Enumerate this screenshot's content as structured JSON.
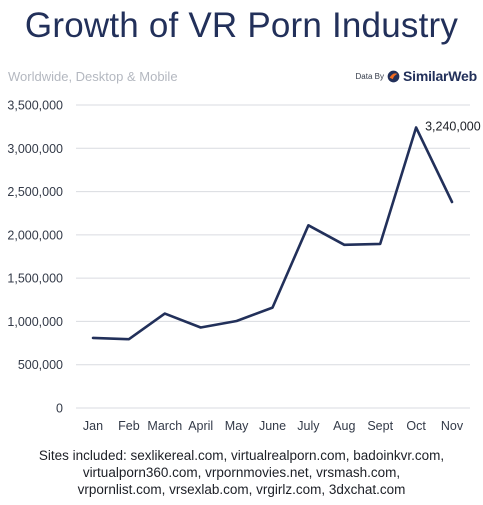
{
  "header": {
    "title": "Growth of VR Porn Industry",
    "subtitle": "Worldwide, Desktop & Mobile",
    "source_prefix": "Data By",
    "source_brand": "SimilarWeb",
    "source_icon": "similarweb-logo-icon"
  },
  "chart_data": {
    "type": "line",
    "title": "Growth of VR Porn Industry",
    "subtitle": "Worldwide, Desktop & Mobile",
    "xlabel": "",
    "ylabel": "",
    "categories": [
      "Jan",
      "Feb",
      "March",
      "April",
      "May",
      "June",
      "July",
      "Aug",
      "Sept",
      "Oct",
      "Nov"
    ],
    "series": [
      {
        "values": [
          810000,
          795000,
          1090000,
          930000,
          1005000,
          1160000,
          2110000,
          1885000,
          1895000,
          3240000,
          2380000
        ],
        "color": "#22305a"
      }
    ],
    "ylim": [
      0,
      3500000
    ],
    "yticks": [
      0,
      500000,
      1000000,
      1500000,
      2000000,
      2500000,
      3000000,
      3500000
    ],
    "ytick_labels": [
      "0",
      "500,000",
      "1,000,000",
      "1,500,000",
      "2,000,000",
      "2,500,000",
      "3,000,000",
      "3,500,000"
    ],
    "annotations": [
      {
        "category": "Oct",
        "value": 3240000,
        "label": "3,240,000"
      }
    ],
    "grid": true,
    "legend": "none"
  },
  "footer": {
    "lines": [
      "Sites included: sexlikereal.com, virtualrealporn.com, badoinkvr.com,",
      "virtualporn360.com, vrpornmovies.net, vrsmash.com,",
      "vrpornlist.com, vrsexlab.com, vrgirlz.com, 3dxchat.com"
    ]
  },
  "colors": {
    "line": "#22305a",
    "grid": "#d9dbe0",
    "title": "#22305a",
    "subtitle": "#b4b8c0",
    "brand_orange": "#f26b21"
  }
}
